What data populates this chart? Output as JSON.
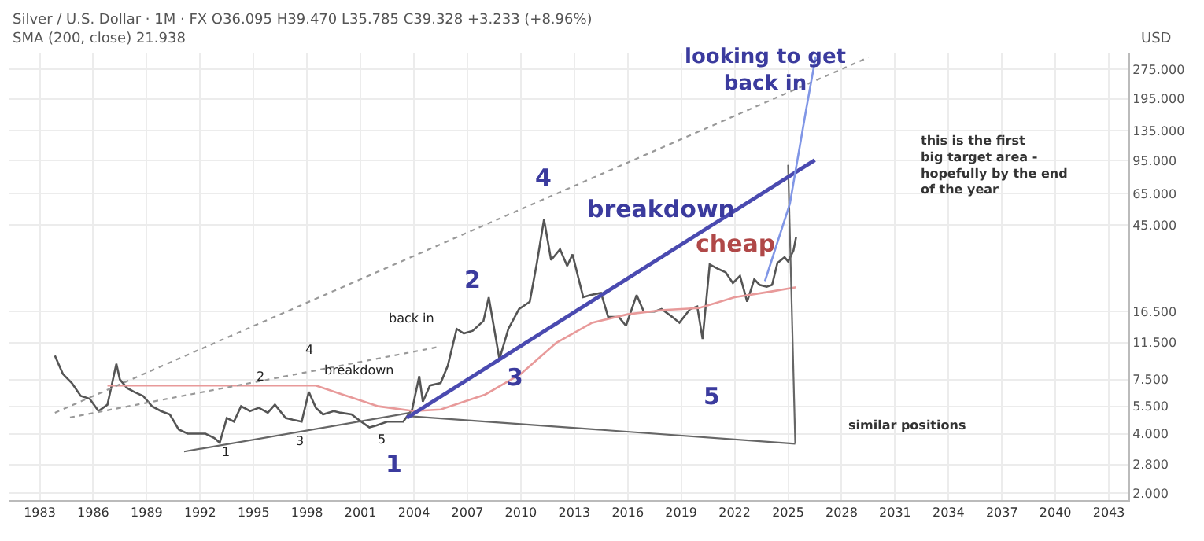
{
  "chart_data": {
    "type": "line",
    "title": "Silver / U.S. Dollar · 1M · FX O36.095 H39.470 L35.785 C39.328 +3.233 (+8.96%)",
    "subtitle": "SMA (200, close) 21.938",
    "ylabel": "USD",
    "log": true,
    "grid": true,
    "marker": "none",
    "xlim": [
      1981.3,
      2044.1
    ],
    "xticks": [
      1983,
      1986,
      1989,
      1992,
      1995,
      1998,
      2001,
      2004,
      2007,
      2010,
      2013,
      2016,
      2019,
      2022,
      2025,
      2028,
      2031,
      2034,
      2037,
      2040,
      2043
    ],
    "ylim": [
      1.85,
      330
    ],
    "yticks": [
      {
        "value": 2,
        "label": "2.000"
      },
      {
        "value": 2.8,
        "label": "2.800"
      },
      {
        "value": 4,
        "label": "4.000"
      },
      {
        "value": 5.5,
        "label": "5.500"
      },
      {
        "value": 7.5,
        "label": "7.500"
      },
      {
        "value": 11.5,
        "label": "11.500"
      },
      {
        "value": 16.5,
        "label": "16.500"
      },
      {
        "value": 45,
        "label": "45.000"
      },
      {
        "value": 65,
        "label": "65.000"
      },
      {
        "value": 95,
        "label": "95.000"
      },
      {
        "value": 135,
        "label": "135.000"
      },
      {
        "value": 195,
        "label": "195.000"
      },
      {
        "value": 275,
        "label": "275.000"
      }
    ],
    "series": [
      {
        "color": "#555555",
        "line_style": "solid",
        "x": [
          1983.85,
          1984.3,
          1984.8,
          1985.3,
          1985.8,
          1986.3,
          1986.8,
          1987.3,
          1987.5,
          1987.9,
          1988.3,
          1988.8,
          1989.3,
          1989.8,
          1990.3,
          1990.8,
          1991.3,
          1991.8,
          1992.3,
          1992.8,
          1993.1,
          1993.5,
          1993.9,
          1994.3,
          1994.8,
          1995.3,
          1995.8,
          1996.2,
          1996.8,
          1997.2,
          1997.7,
          1998.1,
          1998.5,
          1998.9,
          1999.5,
          1999.9,
          2000.5,
          2000.9,
          2001.5,
          2001.9,
          2002.5,
          2002.9,
          2003.4,
          2003.9,
          2004.3,
          2004.5,
          2004.9,
          2005.5,
          2005.9,
          2006.4,
          2006.8,
          2007.3,
          2007.9,
          2008.2,
          2008.8,
          2009.3,
          2009.9,
          2010.5,
          2010.9,
          2011.3,
          2011.7,
          2012.2,
          2012.6,
          2012.9,
          2013.5,
          2013.9,
          2014.5,
          2014.9,
          2015.5,
          2015.9,
          2016.5,
          2016.9,
          2017.5,
          2017.9,
          2018.5,
          2018.9,
          2019.5,
          2019.9,
          2020.2,
          2020.6,
          2021.1,
          2021.5,
          2021.9,
          2022.3,
          2022.7,
          2023.1,
          2023.4,
          2023.8,
          2024.1,
          2024.4,
          2024.8,
          2025.0,
          2025.3,
          2025.45
        ],
        "values": [
          9.9,
          8.0,
          7.2,
          6.2,
          6.0,
          5.2,
          5.6,
          9.0,
          7.5,
          6.8,
          6.5,
          6.2,
          5.5,
          5.2,
          5.0,
          4.2,
          4.0,
          4.0,
          4.0,
          3.8,
          3.6,
          4.8,
          4.6,
          5.5,
          5.2,
          5.4,
          5.1,
          5.6,
          4.8,
          4.7,
          4.6,
          6.5,
          5.4,
          5.0,
          5.2,
          5.1,
          5.0,
          4.7,
          4.3,
          4.4,
          4.6,
          4.6,
          4.6,
          5.3,
          7.8,
          5.8,
          7.0,
          7.2,
          8.8,
          13.5,
          12.8,
          13.2,
          14.8,
          19.5,
          9.5,
          13.5,
          17.0,
          18.5,
          29.0,
          48.0,
          30.0,
          34.0,
          28.0,
          32.0,
          19.5,
          20.0,
          20.5,
          15.5,
          15.5,
          14.0,
          20.0,
          16.5,
          16.5,
          17.0,
          15.5,
          14.5,
          17.0,
          17.5,
          12.0,
          28.5,
          27.0,
          26.0,
          23.0,
          25.0,
          18.5,
          24.0,
          22.5,
          22.0,
          22.5,
          29.0,
          31.0,
          29.5,
          33.5,
          39.3
        ]
      },
      {
        "color": "#e89a9a",
        "line_style": "solid",
        "x": [
          1986.8,
          1990,
          1995,
          1998.5,
          2000,
          2002,
          2004,
          2005.5,
          2008,
          2010,
          2012,
          2014,
          2016,
          2018,
          2020,
          2022,
          2024,
          2025.45
        ],
        "values": [
          7.0,
          7.0,
          7.0,
          7.0,
          6.3,
          5.5,
          5.2,
          5.3,
          6.3,
          8.0,
          11.5,
          14.5,
          16.0,
          16.8,
          17.2,
          19.5,
          20.8,
          21.9
        ]
      },
      {
        "color": "#999999",
        "line_style": "dotted",
        "x": [
          1983.85,
          2029.5
        ],
        "values": [
          5.1,
          315
        ]
      },
      {
        "color": "#999999",
        "line_style": "dotted",
        "x": [
          1984.7,
          2005.5
        ],
        "values": [
          4.83,
          11.0
        ]
      },
      {
        "color": "#666666",
        "line_style": "solid",
        "x": [
          1991.1,
          2003.8
        ],
        "values": [
          3.25,
          5.1
        ]
      },
      {
        "color": "#666666",
        "line_style": "solid",
        "x": [
          2003.8,
          2025.4
        ],
        "values": [
          4.9,
          3.56
        ]
      },
      {
        "color": "#666666",
        "line_style": "solid",
        "x": [
          2025.0,
          2025.4
        ],
        "values": [
          90.6,
          3.56
        ]
      },
      {
        "color": "#4a4ab0",
        "line_style": "solid",
        "x": [
          2003.6,
          2026.5
        ],
        "values": [
          4.8,
          95.7
        ]
      },
      {
        "color": "#8096e6",
        "line_style": "solid",
        "x": [
          2023.7,
          2025.1,
          2026.0,
          2026.55
        ],
        "values": [
          23.5,
          57.8,
          170,
          319
        ]
      }
    ],
    "annotations": [
      "1",
      "2",
      "3",
      "4",
      "5",
      "breakdown",
      "back in",
      "1",
      "2",
      "3",
      "4",
      "5",
      "breakdown",
      "cheap",
      "looking to get\nback in",
      "this is the first\nbig target area -\nhopefully by the end\nof the year",
      "similar positions"
    ]
  }
}
